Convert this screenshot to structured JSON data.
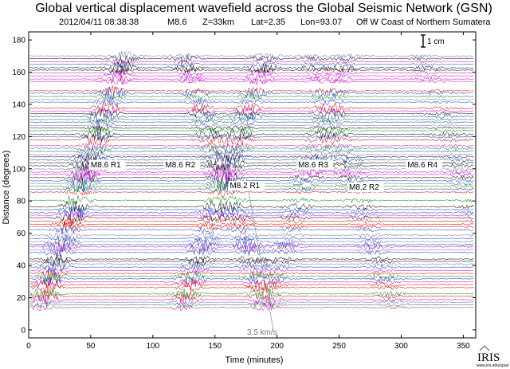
{
  "chart_data": {
    "type": "line",
    "title": "Global vertical displacement wavefield across the Global Seismic Network (GSN)",
    "event": {
      "datetime": "2012/04/11 08:38:38",
      "magnitude": "M8.6",
      "depth": "Z=33km",
      "lat": "Lat=2.35",
      "lon": "Lon=93.07",
      "region": "Off W Coast of Northern Sumatera"
    },
    "xlabel": "Time (minutes)",
    "ylabel": "Distance (degrees)",
    "xlim": [
      0,
      360
    ],
    "ylim": [
      -5,
      185
    ],
    "xticks": [
      0,
      50,
      100,
      150,
      200,
      250,
      300,
      350
    ],
    "yticks": [
      0,
      20,
      40,
      60,
      80,
      100,
      120,
      140,
      160,
      180
    ],
    "scale_bar": "1 cm",
    "trace_colors": [
      "#000000",
      "#d40000",
      "#1133cc",
      "#cc00cc",
      "#008800",
      "#6a6aa8"
    ],
    "phase_labels": [
      {
        "text": "M8.6  R1",
        "x": 50,
        "y": 101
      },
      {
        "text": "M8.6  R2",
        "x": 110,
        "y": 101
      },
      {
        "text": "M8.6  R3",
        "x": 217,
        "y": 101
      },
      {
        "text": "M8.6  R4",
        "x": 305,
        "y": 101
      },
      {
        "text": "M8.2  R1",
        "x": 162,
        "y": 88
      },
      {
        "text": "M8.2  R2",
        "x": 258,
        "y": 87
      }
    ],
    "velocity_line": {
      "label": "3.5 km/s",
      "from": [
        175,
        95
      ],
      "to": [
        197,
        0
      ],
      "label_at": [
        200,
        -3
      ]
    },
    "logo": "IRIS",
    "logo_subtext": "www.iris.edu/spud"
  }
}
